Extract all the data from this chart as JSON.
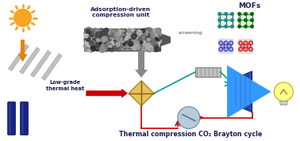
{
  "title": "Thermal compression CO₂ Brayton cycle",
  "label_adsorption": "Adsorption-driven\ncompression unit",
  "label_mofs": "MOFs",
  "label_screening": "screening",
  "label_lowgrade": "Low-grade\nthermal heat",
  "bg_color": "#ffffff",
  "sun_color": "#F5A623",
  "arrow_red": "#cc0000",
  "arrow_cyan": "#009999",
  "arrow_orange": "#E88000",
  "arrow_gray": "#707070",
  "text_dark": "#1a1a50",
  "panel_blue": "#1a237e",
  "turb_blue": "#2244aa",
  "hx_gold": "#e8c060",
  "bulb_yellow": "#ffff90"
}
